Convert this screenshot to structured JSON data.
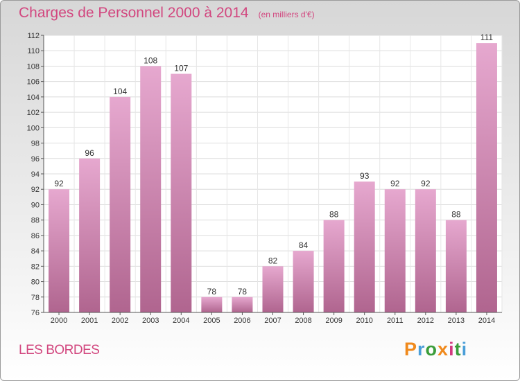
{
  "header": {
    "title": "Charges de Personnel 2000 à 2014",
    "subtitle": "(en milliers d'€)"
  },
  "footer": {
    "commune": "LES BORDES",
    "logo": "Proxiti"
  },
  "colors": {
    "title": "#d2477f",
    "bar_light": "#e6a8cf",
    "bar_dark": "#b0658f",
    "logo_letters": [
      "#f08a1d",
      "#4b9fd8",
      "#3a9d3a",
      "#f08a1d",
      "#d23a7f",
      "#3a9d3a",
      "#4b9fd8"
    ]
  },
  "chart_data": {
    "type": "bar",
    "title": "Charges de Personnel 2000 à 2014",
    "subtitle": "(en milliers d'€)",
    "categories": [
      "2000",
      "2001",
      "2002",
      "2003",
      "2004",
      "2005",
      "2006",
      "2007",
      "2008",
      "2009",
      "2010",
      "2011",
      "2012",
      "2013",
      "2014"
    ],
    "values": [
      92,
      96,
      104,
      108,
      107,
      78,
      78,
      82,
      84,
      88,
      93,
      92,
      92,
      88,
      111
    ],
    "ylim": [
      76,
      112
    ],
    "yticks": [
      76,
      78,
      80,
      82,
      84,
      86,
      88,
      90,
      92,
      94,
      96,
      98,
      100,
      102,
      104,
      106,
      108,
      110,
      112
    ],
    "grid": true,
    "data_labels": true
  }
}
